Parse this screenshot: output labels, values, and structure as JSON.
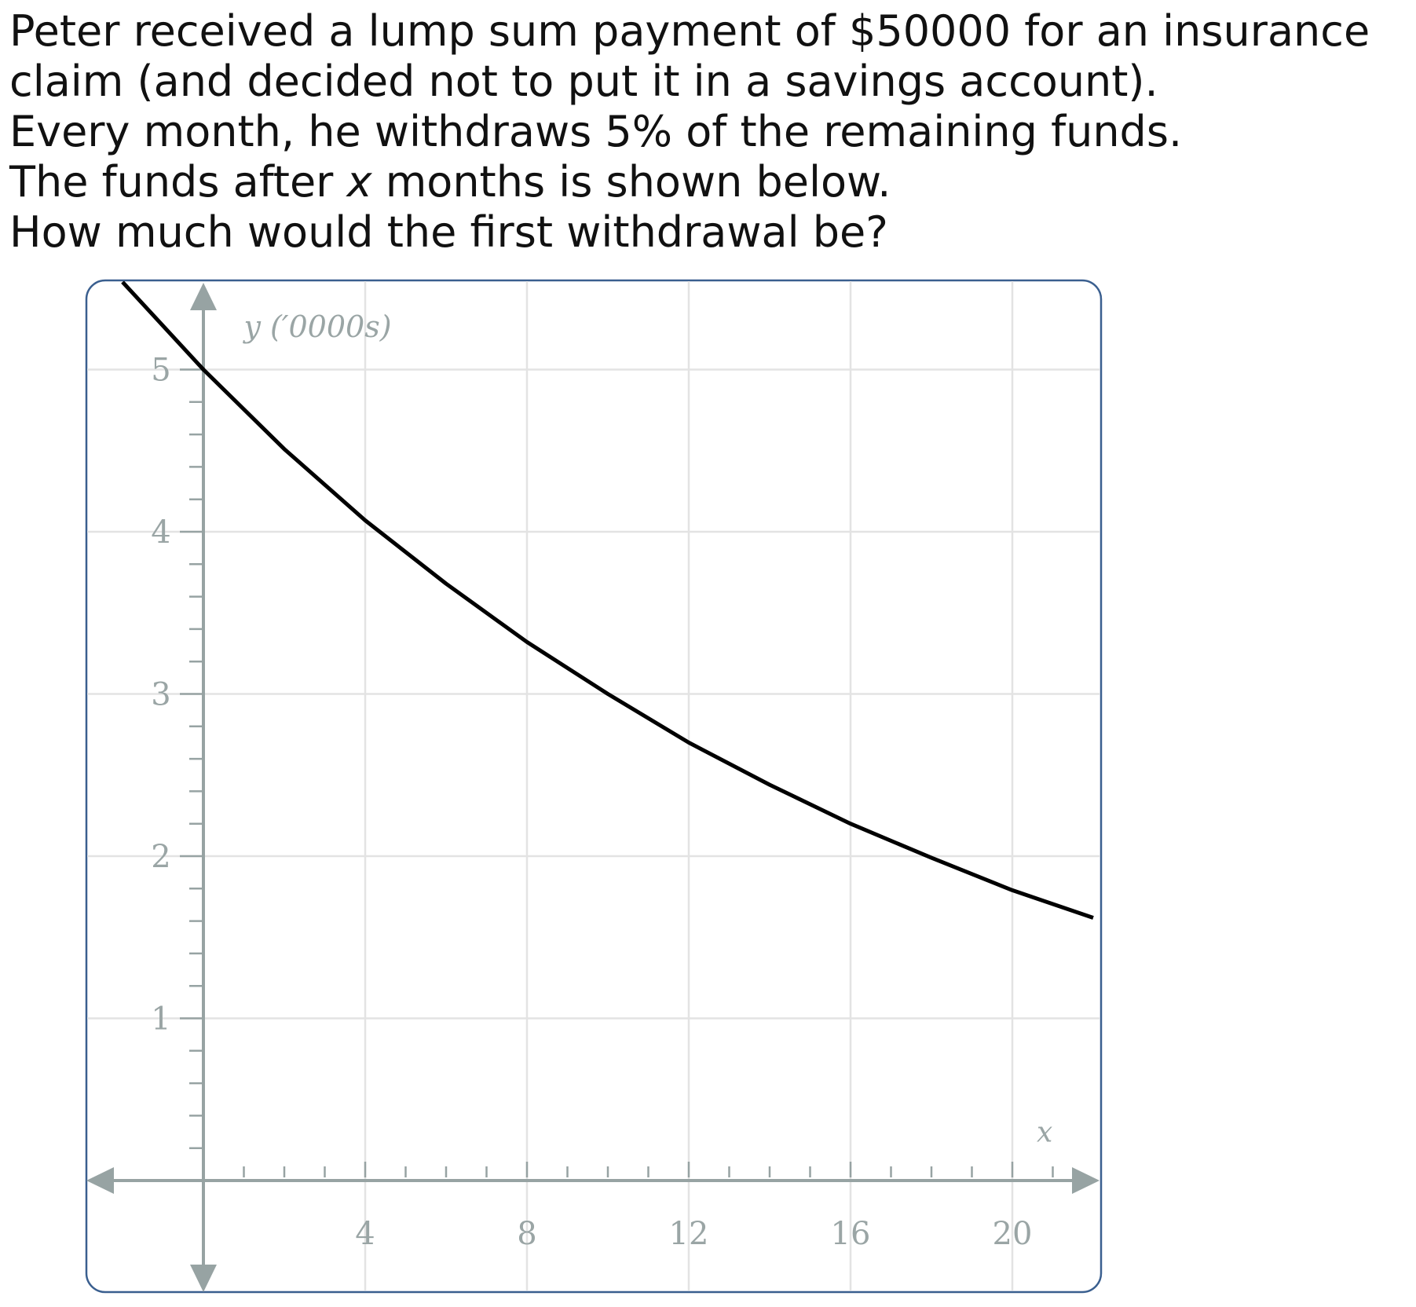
{
  "question": {
    "line1": "Peter received a lump sum payment of $50000 for an insurance",
    "line2": "claim (and decided not to put it in a savings account).",
    "line3": "Every month, he withdraws 5% of the remaining funds.",
    "line4_before": "The funds after ",
    "line4_var": "x",
    "line4_after": " months is shown below.",
    "line5": "How much would the first withdrawal be?"
  },
  "chart_data": {
    "type": "line",
    "xlabel": "x",
    "ylabel": "y (′0000s)",
    "xlim": [
      -3,
      22
    ],
    "ylim": [
      -0.7,
      5.5
    ],
    "x_ticks": [
      4,
      8,
      12,
      16,
      20
    ],
    "x_tick_labels": [
      "4",
      "8",
      "12",
      "16",
      "20"
    ],
    "y_ticks": [
      1,
      2,
      3,
      4,
      5
    ],
    "y_tick_labels": [
      "1",
      "2",
      "3",
      "4",
      "5"
    ],
    "grid": true,
    "series": [
      {
        "x": [
          -2,
          0,
          2,
          4,
          6,
          8,
          10,
          12,
          14,
          16,
          18,
          20,
          22
        ],
        "y": [
          5.54,
          5.0,
          4.51,
          4.07,
          3.68,
          3.32,
          3.0,
          2.7,
          2.44,
          2.2,
          1.99,
          1.79,
          1.62
        ]
      }
    ],
    "colors": {
      "curve": "#000000",
      "axis": "#97a3a3",
      "grid": "#e3e3e3",
      "border": "#3a5f8f",
      "labels": "#9aa5a5"
    }
  }
}
